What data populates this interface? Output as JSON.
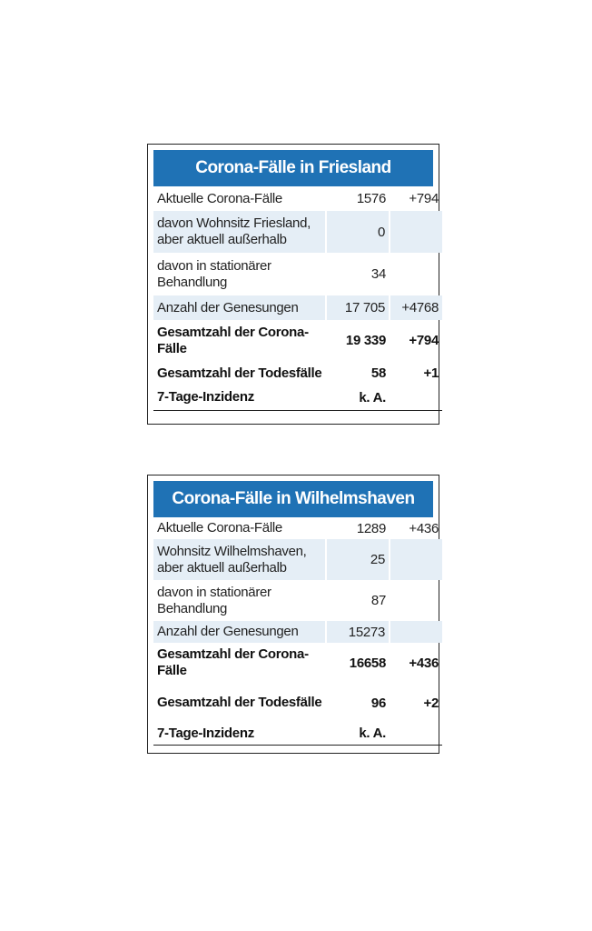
{
  "tables": [
    {
      "title": "Corona-Fälle in Friesland",
      "rows": [
        {
          "label": "Aktuelle Corona-Fälle",
          "value": "1576",
          "change": "+794"
        },
        {
          "label": "davon Wohnsitz Friesland, aber aktuell außerhalb",
          "value": "0",
          "change": ""
        },
        {
          "label": "davon in stationärer Behandlung",
          "value": "34",
          "change": ""
        },
        {
          "label": "Anzahl der Genesungen",
          "value": "17 705",
          "change": "+4768"
        },
        {
          "label": "Gesamtzahl der Corona-Fälle",
          "value": "19 339",
          "change": "+794"
        },
        {
          "label": "Gesamtzahl der Todesfälle",
          "value": "58",
          "change": "+1"
        },
        {
          "label": "7-Tage-Inzidenz",
          "value": "k. A.",
          "change": ""
        }
      ]
    },
    {
      "title": "Corona-Fälle in Wilhelmshaven",
      "rows": [
        {
          "label": "Aktuelle Corona-Fälle",
          "value": "1289",
          "change": "+436"
        },
        {
          "label": "Wohnsitz Wilhelmshaven, aber aktuell außerhalb",
          "value": "25",
          "change": ""
        },
        {
          "label": "davon in stationärer Behandlung",
          "value": "87",
          "change": ""
        },
        {
          "label": "Anzahl der Genesungen",
          "value": "15273",
          "change": ""
        },
        {
          "label": "Gesamtzahl der Corona-Fälle",
          "value": "16658",
          "change": "+436"
        },
        {
          "label": "Gesamtzahl der Todesfälle",
          "value": "96",
          "change": "+2"
        },
        {
          "label": "7-Tage-Inzidenz",
          "value": "k. A.",
          "change": ""
        }
      ]
    }
  ]
}
